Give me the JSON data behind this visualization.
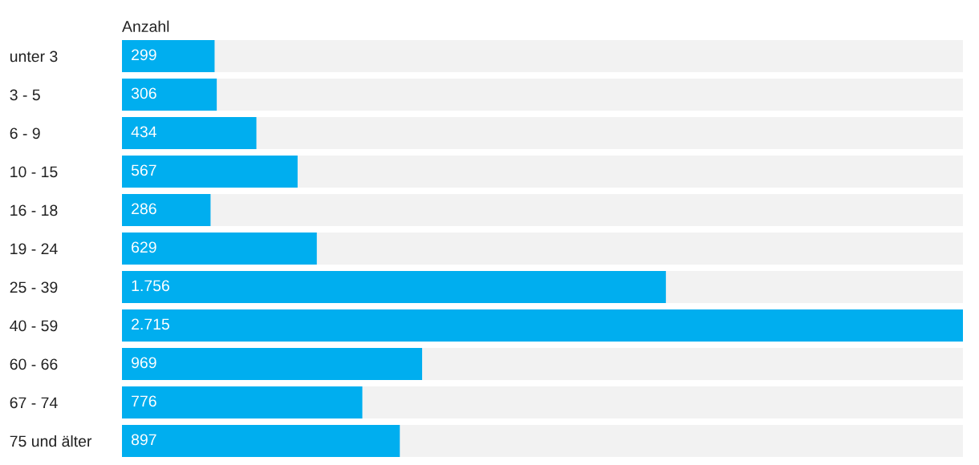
{
  "chart_data": {
    "type": "bar",
    "orientation": "horizontal",
    "title": "Anzahl",
    "categories": [
      "unter 3",
      "3 - 5",
      "6 - 9",
      "10 - 15",
      "16 - 18",
      "19 - 24",
      "25 - 39",
      "40 - 59",
      "60 - 66",
      "67 - 74",
      "75 und älter"
    ],
    "values": [
      299,
      306,
      434,
      567,
      286,
      629,
      1756,
      2715,
      969,
      776,
      897
    ],
    "value_labels": [
      "299",
      "306",
      "434",
      "567",
      "286",
      "629",
      "1.756",
      "2.715",
      "969",
      "776",
      "897"
    ],
    "color": "#00aeef",
    "xlim": [
      0,
      2715
    ],
    "tick_labels": "y",
    "grid": false,
    "legend": false
  }
}
